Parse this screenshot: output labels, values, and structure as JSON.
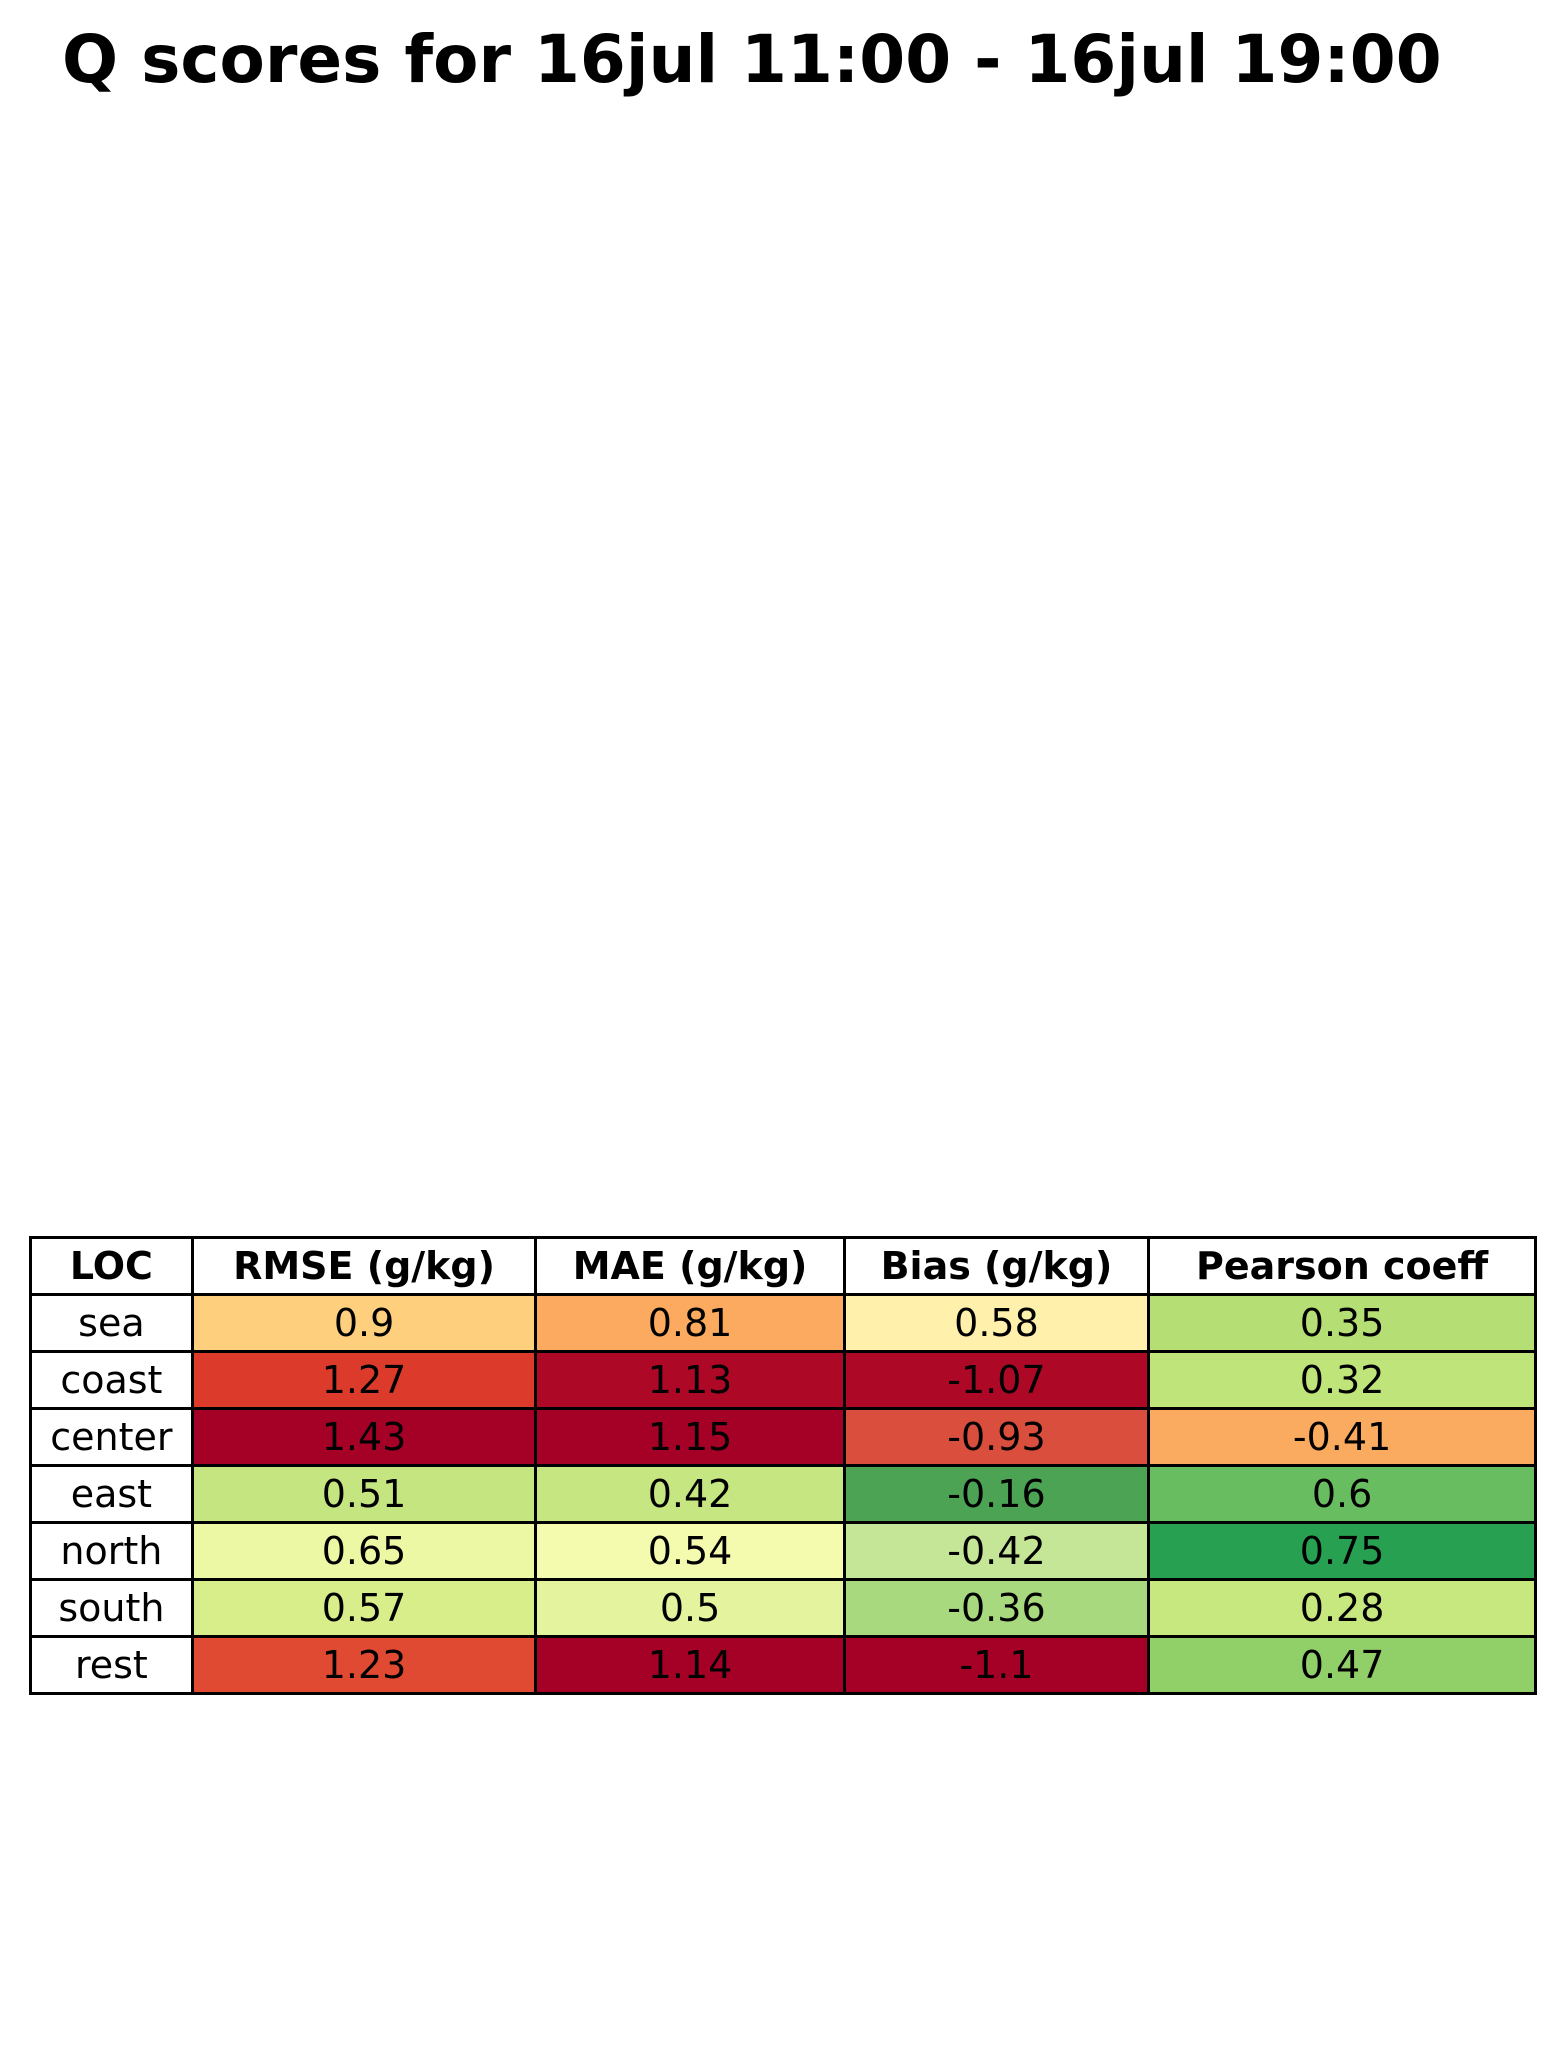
{
  "chart_data": {
    "type": "table",
    "title": "Q scores for 16jul 11:00 - 16jul 19:00",
    "columns": [
      "LOC",
      "RMSE (g/kg)",
      "MAE (g/kg)",
      "Bias (g/kg)",
      "Pearson coeff"
    ],
    "rows": [
      {
        "loc": "sea",
        "values": [
          "0.9",
          "0.81",
          "0.58",
          "0.35"
        ],
        "colors": [
          "#fecf7c",
          "#fcaa5f",
          "#fff1ac",
          "#b5df74"
        ]
      },
      {
        "loc": "coast",
        "values": [
          "1.27",
          "1.13",
          "-1.07",
          "0.32"
        ],
        "colors": [
          "#dc3a2a",
          "#ad0826",
          "#ad0826",
          "#bee47a"
        ]
      },
      {
        "loc": "center",
        "values": [
          "1.43",
          "1.15",
          "-0.93",
          "-0.41"
        ],
        "colors": [
          "#a50026",
          "#a50026",
          "#da4e3e",
          "#fbab60"
        ]
      },
      {
        "loc": "east",
        "values": [
          "0.51",
          "0.42",
          "-0.16",
          "0.6"
        ],
        "colors": [
          "#c4e57f",
          "#c5e680",
          "#4ca354",
          "#68bd60"
        ]
      },
      {
        "loc": "north",
        "values": [
          "0.65",
          "0.54",
          "-0.42",
          "0.75"
        ],
        "colors": [
          "#edf8a5",
          "#f4fbaf",
          "#c6e697",
          "#27a052"
        ]
      },
      {
        "loc": "south",
        "values": [
          "0.57",
          "0.5",
          "-0.36",
          "0.28"
        ],
        "colors": [
          "#d7ee8a",
          "#e4f39e",
          "#a8d97e",
          "#c7e77f"
        ]
      },
      {
        "loc": "rest",
        "values": [
          "1.23",
          "1.14",
          "-1.1",
          "0.47"
        ],
        "colors": [
          "#e04a33",
          "#a50026",
          "#a50026",
          "#91d068"
        ]
      }
    ]
  }
}
